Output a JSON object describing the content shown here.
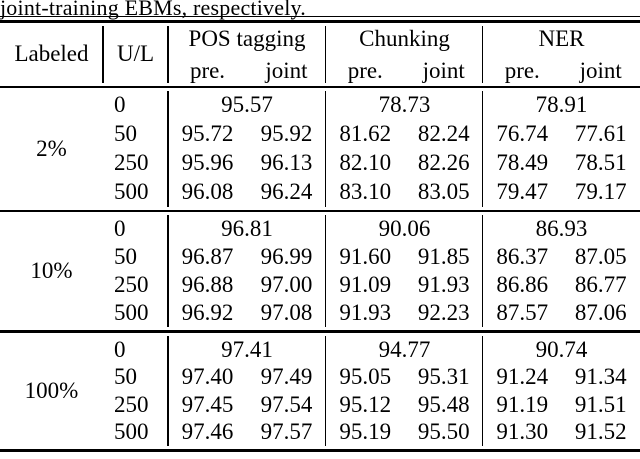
{
  "caption": "joint-training EBMs, respectively.",
  "header": {
    "labeled": "Labeled",
    "ul": "U/L",
    "groups": [
      {
        "title": "POS tagging",
        "pre": "pre.",
        "joint": "joint"
      },
      {
        "title": "Chunking",
        "pre": "pre.",
        "joint": "joint"
      },
      {
        "title": "NER",
        "pre": "pre.",
        "joint": "joint"
      }
    ]
  },
  "blocks": [
    {
      "labeled": "2%",
      "rows": [
        {
          "ul": "0",
          "cells": [
            "95.57",
            "78.73",
            "78.91"
          ]
        },
        {
          "ul": "50",
          "cells": [
            "95.72",
            "95.92",
            "81.62",
            "82.24",
            "76.74",
            "77.61"
          ]
        },
        {
          "ul": "250",
          "cells": [
            "95.96",
            "96.13",
            "82.10",
            "82.26",
            "78.49",
            "78.51"
          ]
        },
        {
          "ul": "500",
          "cells": [
            "96.08",
            "96.24",
            "83.10",
            "83.05",
            "79.47",
            "79.17"
          ]
        }
      ]
    },
    {
      "labeled": "10%",
      "rows": [
        {
          "ul": "0",
          "cells": [
            "96.81",
            "90.06",
            "86.93"
          ]
        },
        {
          "ul": "50",
          "cells": [
            "96.87",
            "96.99",
            "91.60",
            "91.85",
            "86.37",
            "87.05"
          ]
        },
        {
          "ul": "250",
          "cells": [
            "96.88",
            "97.00",
            "91.09",
            "91.93",
            "86.86",
            "86.77"
          ]
        },
        {
          "ul": "500",
          "cells": [
            "96.92",
            "97.08",
            "91.93",
            "92.23",
            "87.57",
            "87.06"
          ]
        }
      ]
    },
    {
      "labeled": "100%",
      "rows": [
        {
          "ul": "0",
          "cells": [
            "97.41",
            "94.77",
            "90.74"
          ]
        },
        {
          "ul": "50",
          "cells": [
            "97.40",
            "97.49",
            "95.05",
            "95.31",
            "91.24",
            "91.34"
          ]
        },
        {
          "ul": "250",
          "cells": [
            "97.45",
            "97.54",
            "95.12",
            "95.48",
            "91.19",
            "91.51"
          ]
        },
        {
          "ul": "500",
          "cells": [
            "97.46",
            "97.57",
            "95.19",
            "95.50",
            "91.30",
            "91.52"
          ]
        }
      ]
    }
  ]
}
